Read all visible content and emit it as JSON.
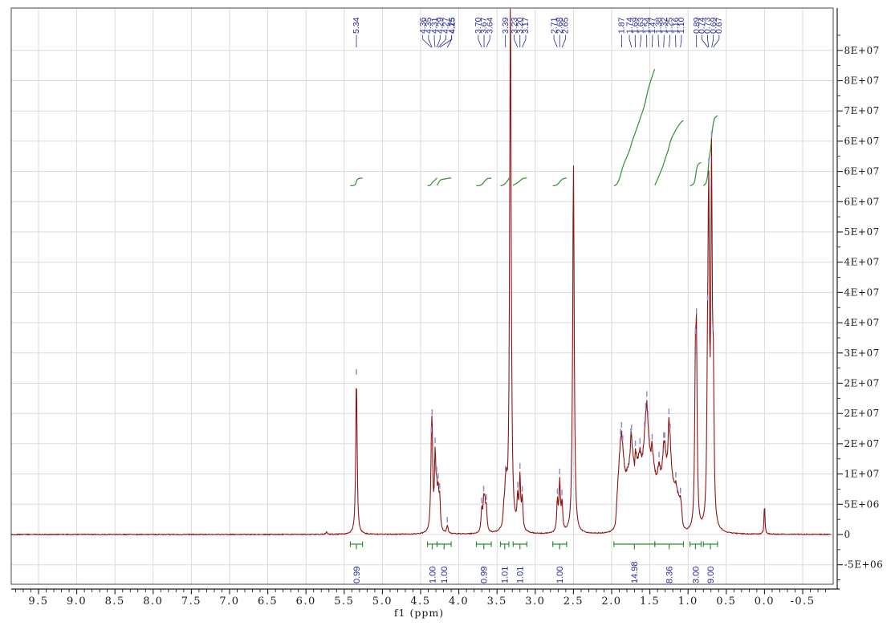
{
  "figure": {
    "background": "#ffffff",
    "kind": "1H NMR spectrum"
  },
  "chart_data": {
    "type": "line",
    "title": "",
    "xlabel": "f1 (ppm)",
    "x_ticks": [
      "9.5",
      "9.0",
      "8.5",
      "8.0",
      "7.5",
      "7.0",
      "6.5",
      "6.0",
      "5.5",
      "5.0",
      "4.5",
      "4.0",
      "3.5",
      "3.0",
      "2.5",
      "2.0",
      "1.5",
      "1.0",
      "0.5",
      "0.0",
      "-0.5"
    ],
    "x_tick_values": [
      9.5,
      9.0,
      8.5,
      8.0,
      7.5,
      7.0,
      6.5,
      6.0,
      5.5,
      5.0,
      4.5,
      4.0,
      3.5,
      3.0,
      2.5,
      2.0,
      1.5,
      1.0,
      0.5,
      0.0,
      -0.5
    ],
    "x_range_ppm": [
      9.855,
      -0.875
    ],
    "y_tick_labels": [
      "8E+07",
      "8E+07",
      "7E+07",
      "6E+07",
      "6E+07",
      "6E+07",
      "5E+07",
      "4E+07",
      "4E+07",
      "4E+07",
      "3E+07",
      "2E+07",
      "2E+07",
      "2E+07",
      "1E+07",
      "5E+06",
      "0",
      "-5E+06"
    ],
    "y_tick_values_e7": [
      8.0,
      7.5,
      7.0,
      6.5,
      6.0,
      5.5,
      5.0,
      4.5,
      4.0,
      3.5,
      3.0,
      2.5,
      2.0,
      1.5,
      1.0,
      0.5,
      0.0,
      -0.5
    ],
    "y_range_e7": [
      -0.85,
      8.72
    ],
    "grid": true,
    "peak_labels": [
      {
        "text": "5.34",
        "ppm": 5.34
      },
      {
        "text": "4.36",
        "ppm": 4.36
      },
      {
        "text": "4.35",
        "ppm": 4.35
      },
      {
        "text": "4.31",
        "ppm": 4.31
      },
      {
        "text": "4.29",
        "ppm": 4.29
      },
      {
        "text": "4.27",
        "ppm": 4.27
      },
      {
        "text": "4.25",
        "ppm": 4.25
      },
      {
        "text": "4.15",
        "ppm": 4.15,
        "stacked": true
      },
      {
        "text": "3.70",
        "ppm": 3.7
      },
      {
        "text": "3.67",
        "ppm": 3.67
      },
      {
        "text": "3.64",
        "ppm": 3.64
      },
      {
        "text": "3.39",
        "ppm": 3.39
      },
      {
        "text": "3.23",
        "ppm": 3.23
      },
      {
        "text": "3.20",
        "ppm": 3.2
      },
      {
        "text": "3.17",
        "ppm": 3.17
      },
      {
        "text": "2.71",
        "ppm": 2.71
      },
      {
        "text": "2.68",
        "ppm": 2.68
      },
      {
        "text": "2.65",
        "ppm": 2.65
      },
      {
        "text": "1.87",
        "ppm": 1.87
      },
      {
        "text": "1.74",
        "ppm": 1.74
      },
      {
        "text": "1.69",
        "ppm": 1.69
      },
      {
        "text": "1.63",
        "ppm": 1.63
      },
      {
        "text": "1.54",
        "ppm": 1.54
      },
      {
        "text": "1.47",
        "ppm": 1.47
      },
      {
        "text": "1.38",
        "ppm": 1.38
      },
      {
        "text": "1.32",
        "ppm": 1.32
      },
      {
        "text": "1.25",
        "ppm": 1.25
      },
      {
        "text": "1.16",
        "ppm": 1.16
      },
      {
        "text": "1.10",
        "ppm": 1.1
      },
      {
        "text": "0.89",
        "ppm": 0.89
      },
      {
        "text": "0.74",
        "ppm": 0.74
      },
      {
        "text": "0.73",
        "ppm": 0.73
      },
      {
        "text": "0.69",
        "ppm": 0.69
      },
      {
        "text": "0.67",
        "ppm": 0.67
      }
    ],
    "integrals": [
      {
        "from": 5.42,
        "to": 5.26,
        "value": "0.99"
      },
      {
        "from": 4.41,
        "to": 4.285,
        "value": "1.00"
      },
      {
        "from": 4.285,
        "to": 4.1,
        "value": "1.00"
      },
      {
        "from": 3.77,
        "to": 3.575,
        "value": "0.99"
      },
      {
        "from": 3.455,
        "to": 3.345,
        "value": "1.01"
      },
      {
        "from": 3.29,
        "to": 3.11,
        "value": "1.01"
      },
      {
        "from": 2.77,
        "to": 2.59,
        "value": "1.00"
      },
      {
        "from": 1.97,
        "to": 1.435,
        "value": "14.98"
      },
      {
        "from": 1.435,
        "to": 1.06,
        "value": "8.36"
      },
      {
        "from": 0.975,
        "to": 0.83,
        "value": "3.00"
      },
      {
        "from": 0.8,
        "to": 0.615,
        "value": "9.00"
      }
    ],
    "peaks_e7": [
      [
        5.73,
        0.04,
        0
      ],
      [
        5.34,
        2.6,
        1
      ],
      [
        4.36,
        0.85,
        1
      ],
      [
        4.35,
        1.38,
        1
      ],
      [
        4.31,
        1.18,
        1
      ],
      [
        4.29,
        0.52,
        1
      ],
      [
        4.27,
        0.55,
        1
      ],
      [
        4.25,
        0.5,
        1
      ],
      [
        4.15,
        0.13,
        1
      ],
      [
        3.7,
        0.36,
        1
      ],
      [
        3.675,
        0.44,
        1
      ],
      [
        3.66,
        0.4,
        0
      ],
      [
        3.64,
        0.38,
        1
      ],
      [
        3.41,
        0.28,
        0
      ],
      [
        3.39,
        0.5,
        1
      ],
      [
        3.375,
        0.42,
        0
      ],
      [
        3.325,
        8.9,
        0,
        0.012
      ],
      [
        3.23,
        0.48,
        1
      ],
      [
        3.2,
        0.85,
        1
      ],
      [
        3.17,
        0.5,
        1
      ],
      [
        2.71,
        0.5,
        1
      ],
      [
        2.68,
        0.82,
        1
      ],
      [
        2.65,
        0.46,
        1
      ],
      [
        2.515,
        0.35,
        0
      ],
      [
        2.5,
        5.9,
        0,
        0.011
      ],
      [
        2.485,
        0.35,
        0
      ],
      [
        1.93,
        0.3,
        0
      ],
      [
        1.915,
        0.45,
        0
      ],
      [
        1.9,
        0.62,
        0
      ],
      [
        1.885,
        0.85,
        1
      ],
      [
        1.87,
        0.95,
        1
      ],
      [
        1.855,
        0.72,
        1
      ],
      [
        1.84,
        0.55,
        0
      ],
      [
        1.825,
        0.45,
        0
      ],
      [
        1.81,
        0.42,
        0
      ],
      [
        1.795,
        0.5,
        0
      ],
      [
        1.78,
        0.48,
        0
      ],
      [
        1.765,
        0.55,
        0
      ],
      [
        1.75,
        0.68,
        1
      ],
      [
        1.74,
        0.78,
        1
      ],
      [
        1.725,
        0.62,
        0
      ],
      [
        1.71,
        0.55,
        0
      ],
      [
        1.69,
        0.78,
        1
      ],
      [
        1.675,
        0.6,
        0
      ],
      [
        1.66,
        0.52,
        0
      ],
      [
        1.645,
        0.6,
        0
      ],
      [
        1.63,
        0.72,
        1
      ],
      [
        1.615,
        0.58,
        0
      ],
      [
        1.6,
        0.52,
        0
      ],
      [
        1.585,
        0.62,
        0
      ],
      [
        1.57,
        0.78,
        1
      ],
      [
        1.555,
        1.0,
        1
      ],
      [
        1.54,
        1.25,
        1
      ],
      [
        1.525,
        0.88,
        1
      ],
      [
        1.51,
        0.68,
        0
      ],
      [
        1.495,
        0.58,
        0
      ],
      [
        1.48,
        0.52,
        0
      ],
      [
        1.47,
        0.68,
        1
      ],
      [
        1.455,
        0.58,
        0
      ],
      [
        1.44,
        0.48,
        0
      ],
      [
        1.425,
        0.42,
        0
      ],
      [
        1.41,
        0.38,
        0
      ],
      [
        1.395,
        0.48,
        0
      ],
      [
        1.38,
        0.62,
        1
      ],
      [
        1.365,
        0.48,
        0
      ],
      [
        1.35,
        0.4,
        0
      ],
      [
        1.335,
        0.52,
        0
      ],
      [
        1.32,
        0.82,
        1
      ],
      [
        1.305,
        0.78,
        1
      ],
      [
        1.29,
        0.58,
        0
      ],
      [
        1.275,
        0.48,
        0
      ],
      [
        1.26,
        0.55,
        0
      ],
      [
        1.25,
        1.05,
        1
      ],
      [
        1.235,
        0.88,
        1
      ],
      [
        1.22,
        0.5,
        0
      ],
      [
        1.205,
        0.42,
        0
      ],
      [
        1.19,
        0.38,
        0
      ],
      [
        1.175,
        0.35,
        0
      ],
      [
        1.16,
        0.45,
        1
      ],
      [
        1.145,
        0.33,
        0
      ],
      [
        1.13,
        0.3,
        0
      ],
      [
        1.115,
        0.26,
        0
      ],
      [
        1.1,
        0.34,
        1
      ],
      [
        1.085,
        0.22,
        0
      ],
      [
        0.905,
        2.3,
        1
      ],
      [
        0.89,
        2.78,
        1
      ],
      [
        0.745,
        1.9,
        1
      ],
      [
        0.73,
        4.95,
        1
      ],
      [
        0.693,
        5.7,
        1
      ],
      [
        0.67,
        2.15,
        1
      ],
      [
        0.0,
        0.49,
        0,
        0.007
      ]
    ],
    "colors": {
      "spectrum": "#8e1414",
      "peak_label": "#28289b",
      "integral_curve": "#2f8f2f",
      "integral_value": "#28289b",
      "peak_mark": "#8f8fd2",
      "grid": "#dadada",
      "frame": "#5a5a5a",
      "axis": "#1c1c1c",
      "tick_text": "#1a1a1a"
    }
  }
}
